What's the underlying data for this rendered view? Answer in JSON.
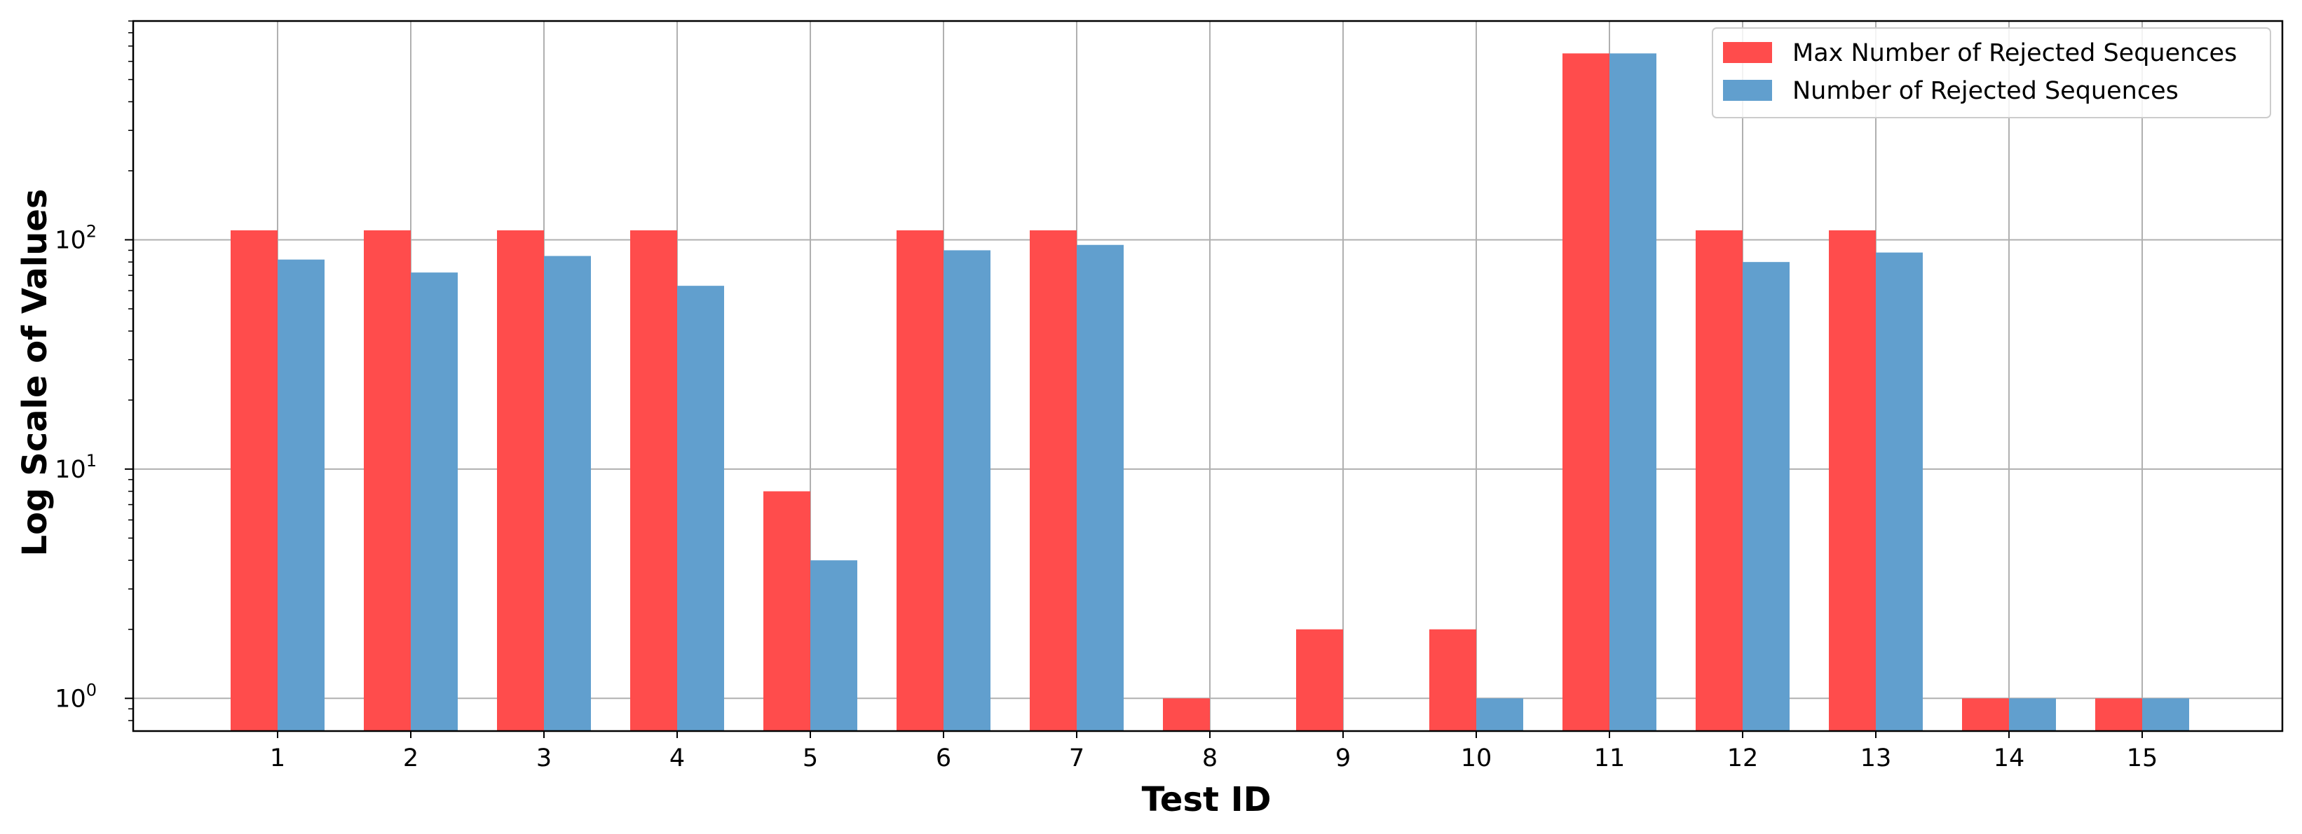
{
  "chart_data": {
    "type": "bar",
    "title": "",
    "xlabel": "Test ID",
    "ylabel": "Log Scale of Values",
    "yscale": "log",
    "ylim": [
      0.72,
      900
    ],
    "yticks": [
      {
        "value": 1,
        "base": "10",
        "exp": "0"
      },
      {
        "value": 10,
        "base": "10",
        "exp": "1"
      },
      {
        "value": 100,
        "base": "10",
        "exp": "2"
      }
    ],
    "categories": [
      "1",
      "2",
      "3",
      "4",
      "5",
      "6",
      "7",
      "8",
      "9",
      "10",
      "11",
      "12",
      "13",
      "14",
      "15"
    ],
    "series": [
      {
        "name": "Max Number of Rejected Sequences",
        "color": "#ff4c4c",
        "values": [
          110,
          110,
          110,
          110,
          8,
          110,
          110,
          1,
          2,
          2,
          650,
          110,
          110,
          1,
          1
        ]
      },
      {
        "name": "Number of Rejected Sequences",
        "color": "#619fce",
        "values": [
          82,
          72,
          85,
          63,
          4,
          90,
          95,
          null,
          null,
          1,
          650,
          80,
          88,
          1,
          1
        ]
      }
    ],
    "grid": true,
    "legend": "top-right"
  }
}
